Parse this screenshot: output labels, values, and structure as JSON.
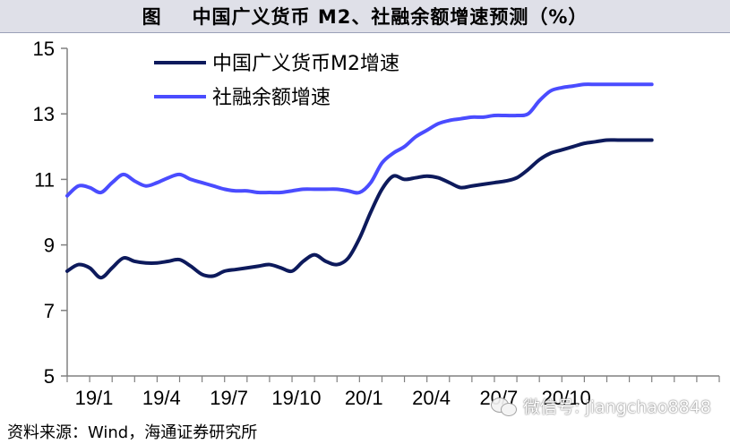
{
  "header": {
    "figure_label": "图",
    "title": "中国广义货币 M2、社融余额增速预测（%）"
  },
  "source_text": "资料来源：Wind，海通证券研究所",
  "watermark": {
    "text": "微信号: jiangchao8848"
  },
  "colors": {
    "m2": "#0d1a5c",
    "tsf": "#4a4cff",
    "axis": "#808080"
  },
  "chart_data": {
    "type": "line",
    "title": "",
    "xlabel": "",
    "ylabel": "",
    "ylim": [
      5,
      15
    ],
    "yticks": [
      "5",
      "7",
      "9",
      "11",
      "13",
      "15"
    ],
    "xlim": [
      0,
      29
    ],
    "xtick_positions": [
      0,
      3,
      6,
      9,
      12,
      15,
      18,
      21
    ],
    "xtick_labels": [
      "19/1",
      "19/4",
      "19/7",
      "19/10",
      "20/1",
      "20/4",
      "20/7",
      "20/10"
    ],
    "x": [
      0,
      0.5,
      1,
      1.5,
      2,
      2.5,
      3,
      3.5,
      4,
      4.5,
      5,
      5.5,
      6,
      6.5,
      7,
      7.5,
      8,
      8.5,
      9,
      9.5,
      10,
      10.5,
      11,
      11.5,
      12,
      12.5,
      13,
      13.5,
      14,
      14.5,
      15,
      15.5,
      16,
      16.5,
      17,
      17.5,
      18,
      18.5,
      19,
      19.5,
      20,
      20.5,
      21,
      21.5,
      22,
      22.5,
      23,
      23.5,
      24,
      24.5,
      25,
      25.5,
      26
    ],
    "series": [
      {
        "name": "中国广义货币M2增速",
        "color": "#0d1a5c",
        "values": [
          8.2,
          8.4,
          8.3,
          8.0,
          8.3,
          8.6,
          8.5,
          8.45,
          8.45,
          8.5,
          8.55,
          8.35,
          8.1,
          8.05,
          8.2,
          8.25,
          8.3,
          8.35,
          8.4,
          8.3,
          8.2,
          8.5,
          8.7,
          8.5,
          8.4,
          8.6,
          9.2,
          10.0,
          10.7,
          11.1,
          11.0,
          11.05,
          11.1,
          11.05,
          10.9,
          10.75,
          10.8,
          10.85,
          10.9,
          10.95,
          11.05,
          11.3,
          11.6,
          11.8,
          11.9,
          12.0,
          12.1,
          12.15,
          12.2,
          12.2,
          12.2,
          12.2,
          12.2
        ]
      },
      {
        "name": "社融余额增速",
        "color": "#4a4cff",
        "values": [
          10.5,
          10.8,
          10.75,
          10.6,
          10.9,
          11.15,
          10.95,
          10.8,
          10.9,
          11.05,
          11.15,
          11.0,
          10.9,
          10.8,
          10.7,
          10.65,
          10.65,
          10.6,
          10.6,
          10.6,
          10.65,
          10.7,
          10.7,
          10.7,
          10.7,
          10.65,
          10.6,
          10.9,
          11.5,
          11.8,
          12.0,
          12.3,
          12.5,
          12.7,
          12.8,
          12.85,
          12.9,
          12.9,
          12.95,
          12.95,
          12.95,
          13.0,
          13.4,
          13.7,
          13.8,
          13.85,
          13.9,
          13.9,
          13.9,
          13.9,
          13.9,
          13.9,
          13.9
        ]
      }
    ],
    "legend": {
      "placement": "top-left"
    }
  }
}
